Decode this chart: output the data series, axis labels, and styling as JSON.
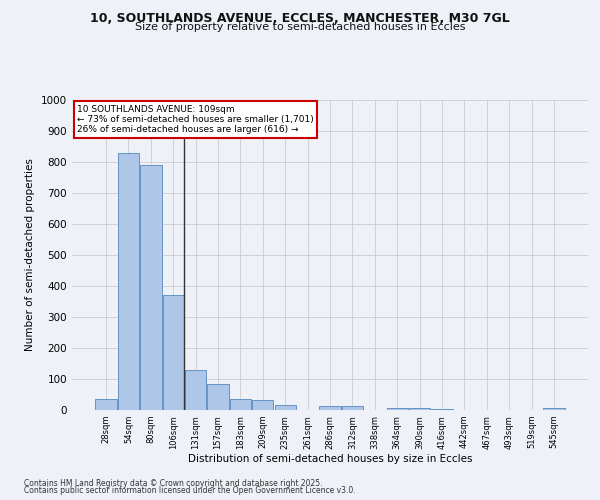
{
  "title_line1": "10, SOUTHLANDS AVENUE, ECCLES, MANCHESTER, M30 7GL",
  "title_line2": "Size of property relative to semi-detached houses in Eccles",
  "xlabel": "Distribution of semi-detached houses by size in Eccles",
  "ylabel": "Number of semi-detached properties",
  "footnote_line1": "Contains HM Land Registry data © Crown copyright and database right 2025.",
  "footnote_line2": "Contains public sector information licensed under the Open Government Licence v3.0.",
  "categories": [
    "28sqm",
    "54sqm",
    "80sqm",
    "106sqm",
    "131sqm",
    "157sqm",
    "183sqm",
    "209sqm",
    "235sqm",
    "261sqm",
    "286sqm",
    "312sqm",
    "338sqm",
    "364sqm",
    "390sqm",
    "416sqm",
    "442sqm",
    "467sqm",
    "493sqm",
    "519sqm",
    "545sqm"
  ],
  "values": [
    35,
    830,
    790,
    370,
    128,
    85,
    37,
    32,
    15,
    0,
    13,
    13,
    0,
    6,
    5,
    3,
    0,
    0,
    0,
    0,
    7
  ],
  "bar_color": "#aec6e8",
  "bar_edge_color": "#5588bb",
  "grid_color": "#cccccc",
  "annotation_text": "10 SOUTHLANDS AVENUE: 109sqm\n← 73% of semi-detached houses are smaller (1,701)\n26% of semi-detached houses are larger (616) →",
  "vline_color": "#333333",
  "annotation_box_edgecolor": "#cc0000",
  "ylim": [
    0,
    1000
  ],
  "yticks": [
    0,
    100,
    200,
    300,
    400,
    500,
    600,
    700,
    800,
    900,
    1000
  ],
  "background_color": "#eef2f8",
  "fig_width": 6.0,
  "fig_height": 5.0,
  "dpi": 100
}
